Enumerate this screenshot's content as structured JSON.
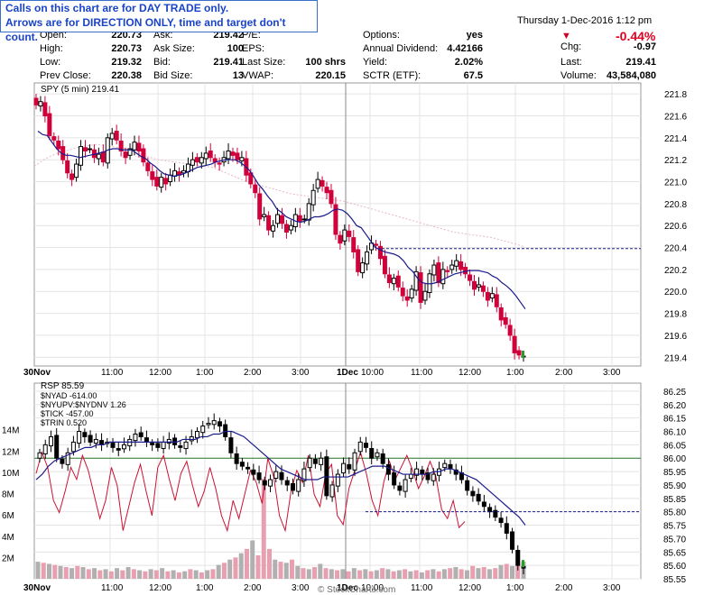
{
  "notice": {
    "line1": "Calls on this chart are for DAY TRADE only.",
    "line2": "Arrows are for DIRECTION ONLY, time and target don't count."
  },
  "header": {
    "date": "Thursday  1-Dec-2016  1:12 pm",
    "change_pct": "-0.44%",
    "brand": "© StockCharts.com"
  },
  "quote": {
    "rows": [
      [
        {
          "l": "Open:",
          "v": "220.73"
        },
        {
          "l": "Ask:",
          "v": "219.42"
        },
        {
          "l": "P/E:",
          "v": ""
        },
        {
          "l": "Options:",
          "v": "yes"
        },
        {
          "l": "Chg:",
          "v": "-0.97"
        }
      ],
      [
        {
          "l": "High:",
          "v": "220.73"
        },
        {
          "l": "Ask Size:",
          "v": "100"
        },
        {
          "l": "EPS:",
          "v": ""
        },
        {
          "l": "Annual Dividend:",
          "v": "4.42166"
        },
        {
          "l": "Last:",
          "v": "219.41"
        }
      ],
      [
        {
          "l": "Low:",
          "v": "219.32"
        },
        {
          "l": "Bid:",
          "v": "219.41"
        },
        {
          "l": "Last Size:",
          "v": "100 shrs"
        },
        {
          "l": "Yield:",
          "v": "2.02%"
        },
        {
          "l": "Volume:",
          "v": "43,584,080"
        }
      ],
      [
        {
          "l": "Prev Close:",
          "v": "220.38"
        },
        {
          "l": "Bid Size:",
          "v": "13"
        },
        {
          "l": "VWAP:",
          "v": "220.15"
        },
        {
          "l": "SCTR (ETF):",
          "v": "67.5"
        },
        {
          "l": "",
          "v": ""
        }
      ]
    ]
  },
  "colors": {
    "up": "#000000",
    "down": "#d0003a",
    "ma": "#1a1a8c",
    "ma2": "#e6b8c8",
    "line": "#cc1133",
    "grid": "#e4e4e4",
    "dash": "#1a1a8c",
    "green": "#2a7a2a",
    "vol_gray": "#b0b0b0",
    "vol_pink": "#e8a0b0",
    "arrow": "#cc0022"
  },
  "chart_data": [
    {
      "type": "candlestick",
      "title": "SPY (5 min) 219.41",
      "interval": "5 min",
      "ylim": [
        219.32,
        221.9
      ],
      "yticks": [
        221.8,
        221.6,
        221.4,
        221.2,
        221.0,
        220.8,
        220.6,
        220.4,
        220.2,
        220.0,
        219.8,
        219.6,
        219.4
      ],
      "xticks": [
        "30Nov",
        "11:00",
        "12:00",
        "1:00",
        "2:00",
        "3:00",
        "1Dec",
        "10:00",
        "11:00",
        "12:00",
        "1:00",
        "2:00",
        "3:00"
      ],
      "horizontal_line": 220.39,
      "close": [
        221.7,
        221.73,
        221.6,
        221.42,
        221.38,
        221.3,
        221.2,
        221.08,
        221.02,
        221.16,
        221.32,
        221.28,
        221.3,
        221.22,
        221.25,
        221.18,
        221.4,
        221.44,
        221.38,
        221.28,
        221.22,
        221.3,
        221.36,
        221.28,
        221.18,
        221.1,
        221.02,
        220.96,
        221.04,
        220.98,
        221.06,
        221.1,
        221.06,
        221.1,
        221.16,
        221.2,
        221.18,
        221.22,
        221.26,
        221.22,
        221.18,
        221.16,
        221.22,
        221.28,
        221.24,
        221.2,
        221.22,
        221.06,
        220.98,
        220.9,
        220.66,
        220.7,
        220.56,
        220.6,
        220.7,
        220.62,
        220.54,
        220.6,
        220.7,
        220.64,
        220.66,
        220.8,
        220.92,
        221.02,
        220.96,
        220.9,
        220.8,
        220.52,
        220.44,
        220.56,
        220.5,
        220.36,
        220.18,
        220.26,
        220.36,
        220.44,
        220.42,
        220.3,
        220.16,
        220.08,
        220.12,
        220.04,
        219.96,
        219.92,
        220.02,
        220.18,
        219.9,
        220.0,
        220.16,
        220.24,
        220.08,
        220.2,
        220.18,
        220.24,
        220.28,
        220.2,
        220.16,
        220.1,
        220.02,
        220.06,
        220.0,
        219.92,
        219.98,
        219.86,
        219.74,
        219.7,
        219.6,
        219.44,
        219.42,
        219.41
      ],
      "ma_fast": [
        221.46,
        221.43,
        221.42,
        221.36,
        221.3,
        221.26,
        221.24,
        221.24,
        221.23,
        221.22,
        221.23,
        221.24,
        221.25,
        221.26,
        221.27,
        221.29,
        221.3,
        221.3,
        221.29,
        221.29,
        221.29,
        221.26,
        221.23,
        221.21,
        221.17,
        221.14,
        221.1,
        221.07,
        221.06,
        221.05,
        221.06,
        221.07,
        221.09,
        221.11,
        221.13,
        221.14,
        221.15,
        221.16,
        221.18,
        221.19,
        221.2,
        221.2,
        221.2,
        221.18,
        221.15,
        221.11,
        221.05,
        220.98,
        220.93,
        220.87,
        220.82,
        220.75,
        220.72,
        220.68,
        220.66,
        220.64,
        220.63,
        220.64,
        220.66,
        220.68,
        220.68,
        220.69,
        220.71,
        220.74,
        220.75,
        220.74,
        220.71,
        220.66,
        220.6,
        220.58,
        220.52,
        220.46,
        220.4,
        220.38,
        220.36,
        220.35,
        220.34,
        220.32,
        220.28,
        220.22,
        220.18,
        220.12,
        220.08,
        220.07,
        220.07,
        220.08,
        220.1,
        220.12,
        220.14,
        220.16,
        220.17,
        220.18,
        220.19,
        220.19,
        220.19,
        220.18,
        220.17,
        220.14,
        220.12,
        220.08,
        220.05,
        220.01,
        219.96,
        219.9,
        219.84
      ],
      "ma_slow": [
        221.14,
        221.19,
        221.23,
        221.26,
        221.28,
        221.3,
        221.32,
        221.33,
        221.34,
        221.33,
        221.32,
        221.31,
        221.3,
        221.27,
        221.24,
        221.22,
        221.2,
        221.19,
        221.18,
        221.17,
        221.16,
        221.15,
        221.14,
        221.13,
        221.1,
        221.07,
        221.04,
        221.01,
        220.99,
        220.97,
        220.95,
        220.93,
        220.91,
        220.89,
        220.88,
        220.87,
        220.86,
        220.85,
        220.84,
        220.83,
        220.82,
        220.8,
        220.78,
        220.76,
        220.74,
        220.72,
        220.7,
        220.68,
        220.66,
        220.64,
        220.62,
        220.6,
        220.58,
        220.56,
        220.54,
        220.53,
        220.52,
        220.51,
        220.5,
        220.49,
        220.47,
        220.45,
        220.43,
        220.41
      ]
    },
    {
      "type": "candlestick",
      "title": "RSP 85.59",
      "legend": [
        "$NYAD -614.00",
        "$NYUPV:$NYDNV 1.26",
        "$TICK -457.00",
        "$TRIN 0.520"
      ],
      "ylim": [
        85.55,
        86.28
      ],
      "yticks": [
        86.25,
        86.2,
        86.15,
        86.1,
        86.05,
        86.0,
        85.95,
        85.9,
        85.85,
        85.8,
        85.75,
        85.7,
        85.65,
        85.6,
        85.55
      ],
      "volume_ticks": [
        "14M",
        "12M",
        "10M",
        "8M",
        "6M",
        "4M",
        "2M"
      ],
      "xticks": [
        "30Nov",
        "11:00",
        "12:00",
        "1:00",
        "2:00",
        "3:00",
        "1Dec",
        "10:00",
        "11:00",
        "12:00",
        "1:00",
        "2:00",
        "3:00"
      ],
      "horizontal_line": 85.8,
      "green_line": 86.0,
      "close": [
        86.02,
        86.05,
        86.08,
        86.0,
        85.98,
        86.02,
        86.06,
        86.1,
        86.08,
        86.06,
        86.07,
        86.05,
        86.06,
        86.04,
        86.03,
        86.05,
        86.07,
        86.09,
        86.08,
        86.06,
        86.05,
        86.04,
        86.06,
        86.07,
        86.05,
        86.04,
        86.06,
        86.08,
        86.1,
        86.12,
        86.13,
        86.14,
        86.12,
        86.08,
        86.02,
        85.98,
        85.97,
        85.96,
        85.94,
        85.92,
        85.9,
        85.92,
        85.95,
        85.92,
        85.9,
        85.88,
        85.92,
        85.96,
        86.0,
        85.98,
        86.0,
        85.86,
        85.9,
        85.94,
        85.98,
        85.96,
        86.02,
        86.06,
        86.04,
        86.0,
        86.02,
        85.98,
        85.94,
        85.9,
        85.88,
        85.92,
        85.94,
        85.96,
        85.94,
        85.92,
        85.94,
        85.96,
        85.98,
        85.96,
        85.94,
        85.92,
        85.88,
        85.86,
        85.84,
        85.82,
        85.8,
        85.78,
        85.76,
        85.72,
        85.66,
        85.6,
        85.59
      ],
      "ma_fast": [
        85.92,
        85.94,
        85.97,
        85.99,
        86.0,
        86.01,
        86.02,
        86.03,
        86.04,
        86.04,
        86.05,
        86.05,
        86.06,
        86.06,
        86.06,
        86.06,
        86.06,
        86.06,
        86.06,
        86.06,
        86.06,
        86.06,
        86.06,
        86.06,
        86.07,
        86.07,
        86.07,
        86.08,
        86.08,
        86.09,
        86.09,
        86.1,
        86.1,
        86.09,
        86.08,
        86.06,
        86.04,
        86.02,
        86.0,
        85.98,
        85.96,
        85.95,
        85.94,
        85.93,
        85.92,
        85.92,
        85.92,
        85.93,
        85.93,
        85.93,
        85.93,
        85.93,
        85.94,
        85.95,
        85.96,
        85.97,
        85.97,
        85.97,
        85.96,
        85.95,
        85.94,
        85.94,
        85.94,
        85.94,
        85.94,
        85.95,
        85.95,
        85.96,
        85.96,
        85.95,
        85.94,
        85.93,
        85.92,
        85.9,
        85.88,
        85.86,
        85.84,
        85.82,
        85.8,
        85.78,
        85.75
      ],
      "line_indicator": [
        0.58,
        0.72,
        0.62,
        0.4,
        0.32,
        0.46,
        0.62,
        0.54,
        0.7,
        0.6,
        0.44,
        0.28,
        0.4,
        0.62,
        0.5,
        0.2,
        0.36,
        0.52,
        0.64,
        0.46,
        0.3,
        0.62,
        0.7,
        0.54,
        0.4,
        0.58,
        0.66,
        0.5,
        0.36,
        0.46,
        0.62,
        0.48,
        0.3,
        0.2,
        0.4,
        0.28,
        0.44,
        0.6,
        0.52,
        0.38,
        0.68,
        0.56,
        0.3,
        0.2,
        0.46,
        0.6,
        0.52,
        0.7,
        0.44,
        0.36,
        0.58,
        0.64,
        0.3,
        0.24,
        0.48,
        0.6,
        0.72,
        0.58,
        0.4,
        0.3,
        0.52,
        0.66,
        0.54,
        0.62,
        0.7,
        0.6,
        0.48,
        0.56,
        0.66,
        0.56,
        0.34,
        0.28,
        0.4,
        0.22,
        0.26
      ],
      "volume": [
        1.6,
        1.5,
        1.4,
        1.3,
        1.2,
        1.1,
        1.0,
        1.2,
        1.1,
        0.9,
        1.0,
        0.8,
        0.9,
        0.7,
        1.0,
        0.8,
        1.1,
        0.9,
        0.8,
        0.7,
        0.9,
        0.8,
        1.0,
        0.7,
        0.8,
        0.6,
        0.7,
        0.9,
        0.8,
        0.6,
        0.8,
        0.9,
        1.3,
        1.5,
        1.8,
        2.0,
        2.4,
        2.8,
        3.6,
        2.2,
        9.4,
        2.8,
        1.8,
        1.6,
        1.5,
        1.8,
        1.2,
        1.0,
        0.9,
        1.1,
        1.4,
        1.0,
        0.9,
        0.8,
        0.9,
        0.7,
        1.0,
        0.8,
        0.9,
        0.7,
        0.8,
        1.0,
        0.9,
        0.7,
        0.8,
        0.9,
        0.7,
        0.8,
        0.6,
        0.8,
        0.9,
        0.7,
        0.9,
        1.0,
        1.1,
        0.9,
        0.8,
        1.2,
        1.0,
        1.1,
        0.9,
        1.0,
        1.3,
        1.4,
        1.2,
        1.5,
        1.6
      ]
    }
  ]
}
